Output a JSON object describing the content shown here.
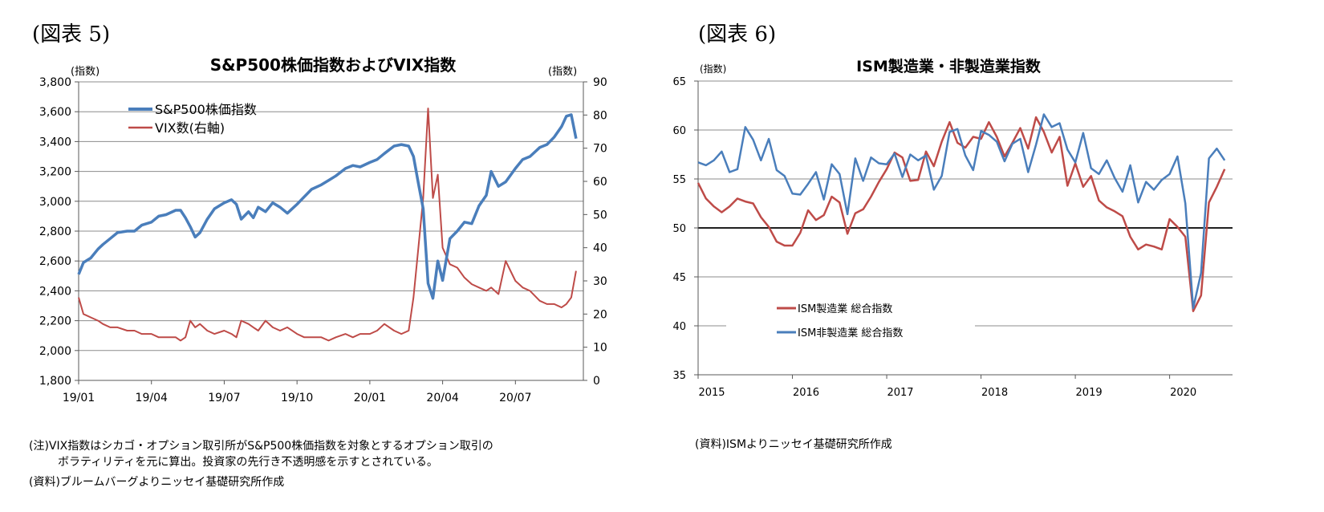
{
  "figures": {
    "fig5": {
      "label": "(図表 5)"
    },
    "fig6": {
      "label": "(図表 6)"
    }
  },
  "notes": {
    "note1": "(注)VIX指数はシカゴ・オプション取引所がS&P500株価指数を対象とするオプション取引の",
    "note2": "ボラティリティを元に算出。投資家の先行き不透明感を示すとされている。",
    "note3": "(資料)ブルームバーグよりニッセイ基礎研究所作成",
    "source2": "(資料)ISMよりニッセイ基礎研究所作成"
  },
  "colors": {
    "blue": "#4a7ebb",
    "red": "#be4b48",
    "grid": "#8c8c8c",
    "axis": "#595959"
  },
  "chart_data": [
    {
      "type": "line",
      "title": "S&P500株価指数およびVIX指数",
      "ylabel": "(指数)",
      "y2label": "(指数)",
      "ylim": [
        1800,
        3800
      ],
      "y2lim": [
        0,
        90
      ],
      "yticks": [
        1800,
        2000,
        2200,
        2400,
        2600,
        2800,
        3000,
        3200,
        3400,
        3600,
        3800
      ],
      "yticklabels": [
        "1,800",
        "2,000",
        "2,200",
        "2,400",
        "2,600",
        "2,800",
        "3,000",
        "3,200",
        "3,400",
        "3,600",
        "3,800"
      ],
      "y2ticks": [
        0,
        10,
        20,
        30,
        40,
        50,
        60,
        70,
        80,
        90
      ],
      "y2ticklabels": [
        "0",
        "10",
        "20",
        "30",
        "40",
        "50",
        "60",
        "70",
        "80",
        "90"
      ],
      "xlim": [
        0,
        20.8
      ],
      "xticks": [
        0,
        3,
        6,
        9,
        12,
        15,
        18
      ],
      "xticklabels": [
        "19/01",
        "19/04",
        "19/07",
        "19/10",
        "20/01",
        "20/04",
        "20/07"
      ],
      "x_unit": "months since 2019-01",
      "legend": "top-left",
      "series": [
        {
          "name": "S&P500株価指数",
          "axis": "left",
          "color": "#4a7ebb",
          "x": [
            0,
            0.2,
            0.5,
            0.8,
            1.0,
            1.3,
            1.6,
            2.0,
            2.3,
            2.6,
            3.0,
            3.3,
            3.6,
            4.0,
            4.2,
            4.4,
            4.6,
            4.8,
            5.0,
            5.3,
            5.6,
            6.0,
            6.3,
            6.5,
            6.7,
            7.0,
            7.2,
            7.4,
            7.7,
            8.0,
            8.3,
            8.6,
            9.0,
            9.3,
            9.6,
            10.0,
            10.3,
            10.6,
            11.0,
            11.3,
            11.6,
            12.0,
            12.3,
            12.6,
            13.0,
            13.3,
            13.6,
            13.8,
            14.0,
            14.2,
            14.4,
            14.6,
            14.8,
            15.0,
            15.3,
            15.6,
            15.9,
            16.2,
            16.5,
            16.8,
            17.0,
            17.3,
            17.6,
            18.0,
            18.3,
            18.6,
            19.0,
            19.3,
            19.6,
            19.9,
            20.1,
            20.3,
            20.5
          ],
          "values": [
            2510,
            2590,
            2620,
            2680,
            2710,
            2750,
            2790,
            2800,
            2800,
            2840,
            2860,
            2900,
            2910,
            2940,
            2940,
            2890,
            2830,
            2760,
            2790,
            2880,
            2950,
            2990,
            3010,
            2980,
            2880,
            2930,
            2890,
            2960,
            2930,
            2990,
            2960,
            2920,
            2980,
            3030,
            3080,
            3110,
            3140,
            3170,
            3220,
            3240,
            3230,
            3260,
            3280,
            3320,
            3370,
            3380,
            3370,
            3300,
            3120,
            2950,
            2450,
            2350,
            2600,
            2470,
            2750,
            2800,
            2860,
            2850,
            2970,
            3040,
            3200,
            3100,
            3130,
            3220,
            3280,
            3300,
            3360,
            3380,
            3430,
            3500,
            3570,
            3580,
            3420
          ]
        },
        {
          "name": "VIX数(右軸)",
          "axis": "right",
          "color": "#be4b48",
          "x": [
            0,
            0.2,
            0.5,
            0.8,
            1.0,
            1.3,
            1.6,
            2.0,
            2.3,
            2.6,
            3.0,
            3.3,
            3.6,
            4.0,
            4.2,
            4.4,
            4.6,
            4.8,
            5.0,
            5.3,
            5.6,
            6.0,
            6.3,
            6.5,
            6.7,
            7.0,
            7.2,
            7.4,
            7.7,
            8.0,
            8.3,
            8.6,
            9.0,
            9.3,
            9.6,
            10.0,
            10.3,
            10.6,
            11.0,
            11.3,
            11.6,
            12.0,
            12.3,
            12.6,
            13.0,
            13.3,
            13.6,
            13.8,
            14.0,
            14.2,
            14.4,
            14.6,
            14.8,
            15.0,
            15.3,
            15.6,
            15.9,
            16.2,
            16.5,
            16.8,
            17.0,
            17.3,
            17.6,
            18.0,
            18.3,
            18.6,
            19.0,
            19.3,
            19.6,
            19.9,
            20.1,
            20.3,
            20.5
          ],
          "values": [
            25,
            20,
            19,
            18,
            17,
            16,
            16,
            15,
            15,
            14,
            14,
            13,
            13,
            13,
            12,
            13,
            18,
            16,
            17,
            15,
            14,
            15,
            14,
            13,
            18,
            17,
            16,
            15,
            18,
            16,
            15,
            16,
            14,
            13,
            13,
            13,
            12,
            13,
            14,
            13,
            14,
            14,
            15,
            17,
            15,
            14,
            15,
            25,
            40,
            55,
            82,
            55,
            62,
            40,
            35,
            34,
            31,
            29,
            28,
            27,
            28,
            26,
            36,
            30,
            28,
            27,
            24,
            23,
            23,
            22,
            23,
            25,
            33
          ]
        }
      ]
    },
    {
      "type": "line",
      "title": "ISM製造業・非製造業指数",
      "ylabel": "(指数)",
      "ylim": [
        35,
        65
      ],
      "yticks": [
        35,
        40,
        45,
        50,
        55,
        60,
        65
      ],
      "yticklabels": [
        "35",
        "40",
        "45",
        "50",
        "55",
        "60",
        "65"
      ],
      "xlim": [
        2015,
        2020.667
      ],
      "xticks": [
        2015,
        2016,
        2017,
        2018,
        2019,
        2020
      ],
      "xticklabels": [
        "2015",
        "2016",
        "2017",
        "2018",
        "2019",
        "2020"
      ],
      "reference_line": 50,
      "legend": "bottom-left",
      "series": [
        {
          "name": "ISM製造業 総合指数",
          "color": "#be4b48",
          "values": [
            54.6,
            53.0,
            52.2,
            51.6,
            52.2,
            53.0,
            52.7,
            52.5,
            51.1,
            50.1,
            48.6,
            48.2,
            48.2,
            49.5,
            51.8,
            50.8,
            51.3,
            53.2,
            52.6,
            49.4,
            51.5,
            51.9,
            53.2,
            54.7,
            56.0,
            57.7,
            57.2,
            54.8,
            54.9,
            57.8,
            56.3,
            58.8,
            60.8,
            58.7,
            58.2,
            59.3,
            59.1,
            60.8,
            59.3,
            57.3,
            58.7,
            60.2,
            58.1,
            61.3,
            59.8,
            57.7,
            59.3,
            54.3,
            56.6,
            54.2,
            55.3,
            52.8,
            52.1,
            51.7,
            51.2,
            49.1,
            47.8,
            48.3,
            48.1,
            47.8,
            50.9,
            50.1,
            49.1,
            41.5,
            43.1,
            52.6,
            54.2,
            56.0
          ],
          "start": 2015.0,
          "step_months": 1
        },
        {
          "name": "ISM非製造業 総合指数",
          "color": "#4a7ebb",
          "values": [
            56.7,
            56.4,
            56.9,
            57.8,
            55.7,
            56.0,
            60.3,
            59.0,
            56.9,
            59.1,
            55.9,
            55.3,
            53.5,
            53.4,
            54.5,
            55.7,
            52.9,
            56.5,
            55.5,
            51.4,
            57.1,
            54.8,
            57.2,
            56.6,
            56.5,
            57.6,
            55.2,
            57.5,
            56.9,
            57.4,
            53.9,
            55.3,
            59.8,
            60.1,
            57.4,
            55.9,
            59.9,
            59.5,
            58.8,
            56.8,
            58.6,
            59.1,
            55.7,
            58.5,
            61.6,
            60.3,
            60.7,
            58.0,
            56.7,
            59.7,
            56.1,
            55.5,
            56.9,
            55.1,
            53.7,
            56.4,
            52.6,
            54.7,
            53.9,
            54.9,
            55.5,
            57.3,
            52.5,
            41.8,
            45.4,
            57.1,
            58.1,
            56.9
          ],
          "start": 2015.0,
          "step_months": 1
        }
      ]
    }
  ]
}
